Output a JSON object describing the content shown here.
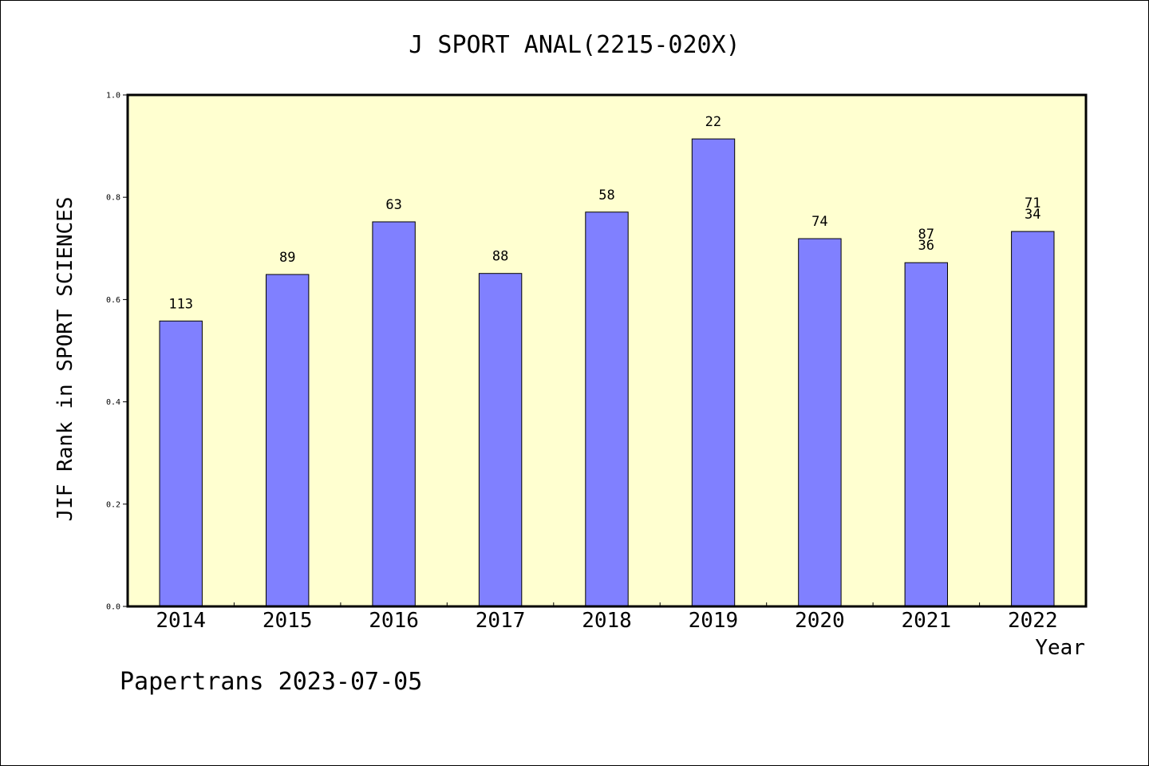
{
  "chart_data": {
    "type": "bar",
    "title": "J SPORT ANAL(2215-020X)",
    "xlabel": "Year",
    "ylabel": "JIF Rank in SPORT SCIENCES",
    "ylim": [
      0,
      1.0
    ],
    "yticks": [
      "0.0",
      "0.2",
      "0.4",
      "0.6",
      "0.8",
      "1.0"
    ],
    "categories": [
      "2014",
      "2015",
      "2016",
      "2017",
      "2018",
      "2019",
      "2020",
      "2021",
      "2022"
    ],
    "values": [
      0.558,
      0.649,
      0.752,
      0.651,
      0.771,
      0.914,
      0.719,
      0.672,
      0.733
    ],
    "bar_labels": [
      [
        "113"
      ],
      [
        "89"
      ],
      [
        "63"
      ],
      [
        "88"
      ],
      [
        "58"
      ],
      [
        "22"
      ],
      [
        "74"
      ],
      [
        "87",
        "36"
      ],
      [
        "71",
        "34"
      ]
    ],
    "grid": false,
    "legend": "none",
    "colors": {
      "bar": "#8080ff",
      "plot_background": "#ffffd0",
      "frame": "#000000"
    }
  },
  "footer": {
    "credit": "Papertrans 2023-07-05"
  }
}
